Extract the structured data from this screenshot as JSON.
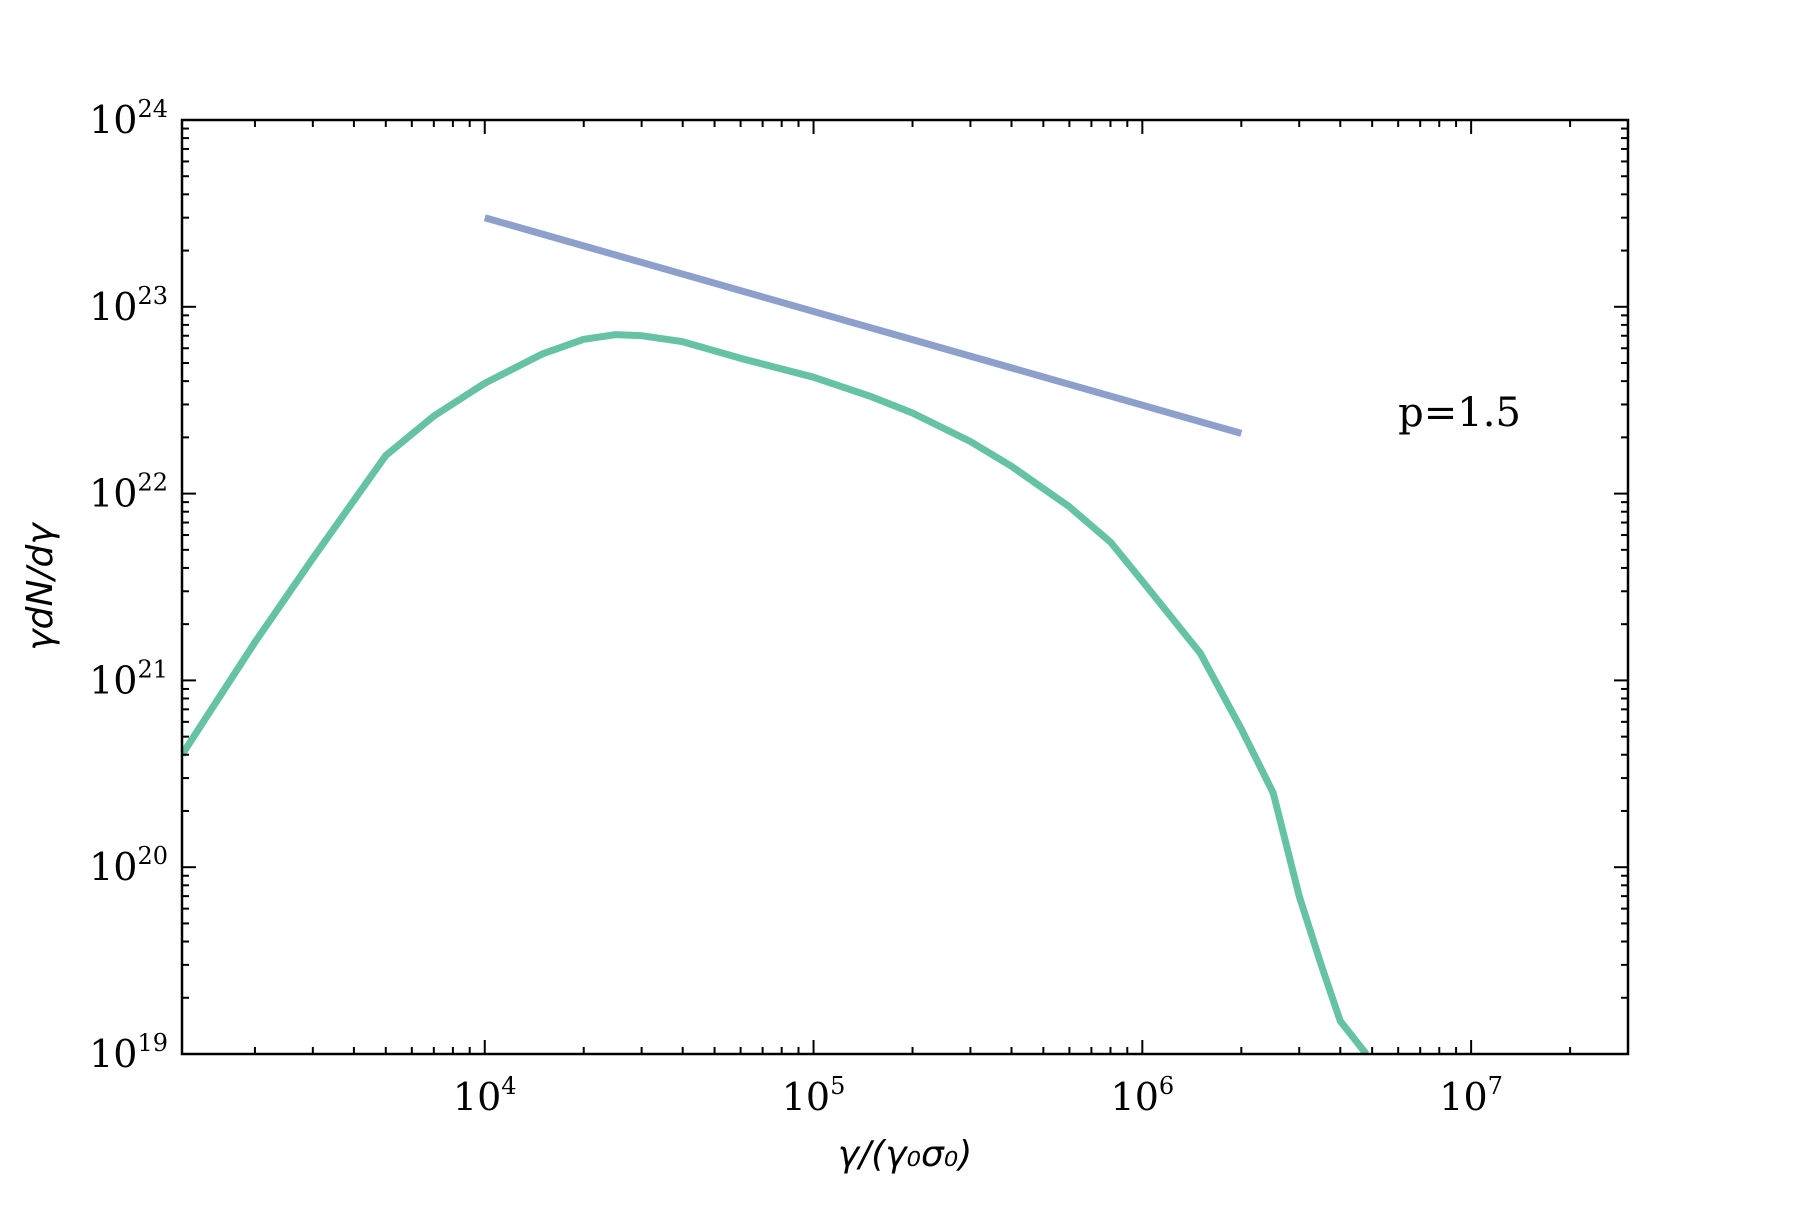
{
  "colors": {
    "spectrum": "#66c2a5",
    "powerlaw": "#8da0cb",
    "axes": "#000000",
    "background": "#ffffff"
  },
  "chart_data": {
    "type": "line",
    "xscale": "log",
    "yscale": "log",
    "xlim": [
      1200,
      30000000
    ],
    "ylim": [
      1e+19,
      1e+24
    ],
    "xlabel": "γ/(γ₀σ₀)",
    "ylabel": "γdN/dγ",
    "grid": false,
    "legend": "none",
    "x_ticks": [
      {
        "value": 10000,
        "base": "10",
        "exp": "4"
      },
      {
        "value": 100000,
        "base": "10",
        "exp": "5"
      },
      {
        "value": 1000000,
        "base": "10",
        "exp": "6"
      },
      {
        "value": 10000000,
        "base": "10",
        "exp": "7"
      }
    ],
    "y_ticks": [
      {
        "value": 1e+19,
        "base": "10",
        "exp": "19"
      },
      {
        "value": 1e+20,
        "base": "10",
        "exp": "20"
      },
      {
        "value": 1e+21,
        "base": "10",
        "exp": "21"
      },
      {
        "value": 1e+22,
        "base": "10",
        "exp": "22"
      },
      {
        "value": 1e+23,
        "base": "10",
        "exp": "23"
      },
      {
        "value": 1e+24,
        "base": "10",
        "exp": "24"
      }
    ],
    "series": [
      {
        "color": "#66c2a5",
        "x": [
          1200,
          2000,
          3000,
          5000,
          7000,
          10000,
          15000,
          20000,
          25000,
          30000,
          40000,
          60000,
          100000,
          150000,
          200000,
          300000,
          400000,
          600000,
          800000,
          1000000,
          1500000,
          2000000,
          2500000,
          3000000,
          3500000,
          4000000,
          4800000
        ],
        "y": [
          4e+20,
          1.6e+21,
          4.5e+21,
          1.6e+22,
          2.6e+22,
          3.9e+22,
          5.6e+22,
          6.7e+22,
          7.1e+22,
          7e+22,
          6.5e+22,
          5.3e+22,
          4.2e+22,
          3.3e+22,
          2.7e+22,
          1.9e+22,
          1.4e+22,
          8.5e+21,
          5.5e+21,
          3.4e+21,
          1.4e+21,
          5.5e+20,
          2.5e+20,
          7e+19,
          3e+19,
          1.5e+19,
          1e+19
        ]
      },
      {
        "color": "#8da0cb",
        "x": [
          10000,
          2000000
        ],
        "y": [
          3e+23,
          2.1e+22
        ]
      }
    ],
    "annotations": [
      {
        "text": "p=1.5",
        "x": 6000000,
        "y": 2.3e+22
      }
    ]
  }
}
